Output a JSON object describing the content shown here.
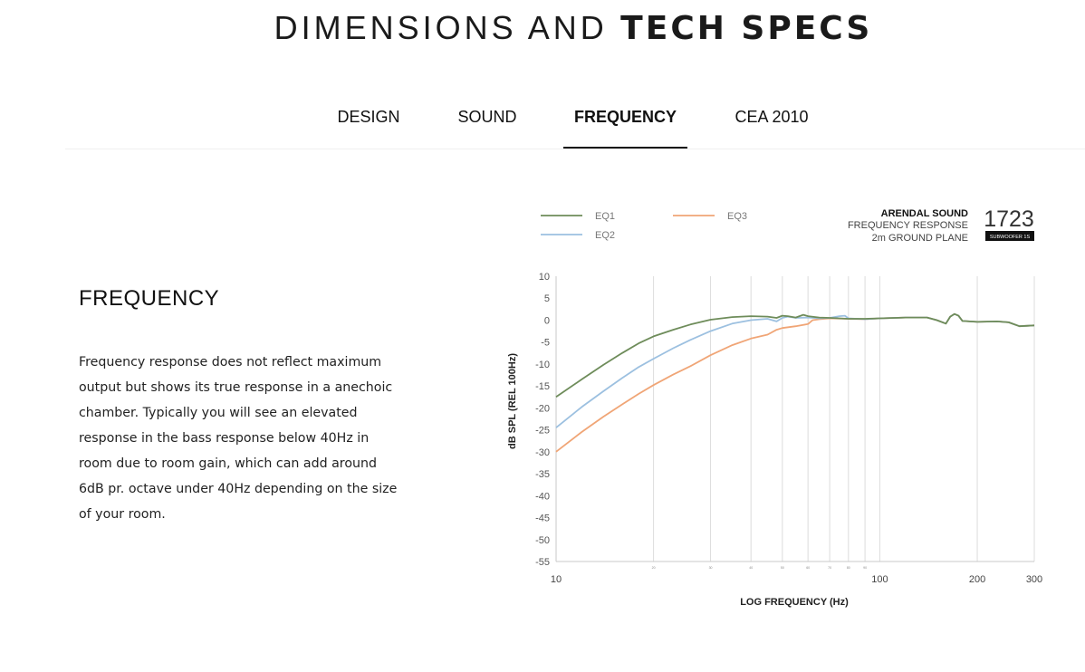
{
  "heading": {
    "light": "DIMENSIONS AND",
    "bold": "TECH SPECS"
  },
  "tabs": [
    {
      "label": "DESIGN",
      "active": false
    },
    {
      "label": "SOUND",
      "active": false
    },
    {
      "label": "FREQUENCY",
      "active": true
    },
    {
      "label": "CEA 2010",
      "active": false
    }
  ],
  "section": {
    "title": "FREQUENCY",
    "body": "Frequency response does not reflect maximum output but shows its true response in a anechoic chamber. Typically you will see an elevated response in the bass response below 40Hz in room due to room gain, which can add around 6dB pr. octave under 40Hz depending on the size of your room."
  },
  "chart_data": {
    "type": "line",
    "title": "ARENDAL SOUND",
    "subtitle_lines": [
      "FREQUENCY RESPONSE",
      "2m GROUND PLANE"
    ],
    "logo": {
      "text": "1723",
      "badge": "SUBWOOFER 1S"
    },
    "xlabel": "LOG FREQUENCY (Hz)",
    "ylabel": "dB SPL (REL 100Hz)",
    "xscale": "log",
    "xlim": [
      10,
      300
    ],
    "ylim": [
      -55,
      10
    ],
    "x_ticks": [
      10,
      100,
      200,
      300
    ],
    "x_minor_ticks": [
      20,
      30,
      40,
      50,
      60,
      70,
      80,
      90
    ],
    "y_ticks": [
      10,
      5,
      0,
      -5,
      -10,
      -15,
      -20,
      -25,
      -30,
      -35,
      -40,
      -45,
      -50,
      -55
    ],
    "grid": "vertical",
    "legend_position": "top-left",
    "series": [
      {
        "name": "EQ1",
        "color": "#6e8c5a",
        "x": [
          10,
          12,
          14,
          16,
          18,
          20,
          23,
          26,
          30,
          35,
          40,
          45,
          48,
          50,
          52,
          55,
          58,
          60,
          65,
          70,
          80,
          90,
          100,
          120,
          140,
          150,
          160,
          165,
          170,
          175,
          180,
          200,
          230,
          250,
          270,
          300
        ],
        "y": [
          -17.5,
          -13.5,
          -10.2,
          -7.5,
          -5.3,
          -3.7,
          -2.2,
          -1.0,
          0.1,
          0.7,
          0.9,
          0.8,
          0.5,
          1.0,
          0.9,
          0.6,
          1.2,
          0.9,
          0.6,
          0.5,
          0.3,
          0.3,
          0.4,
          0.6,
          0.6,
          0.0,
          -0.8,
          0.8,
          1.4,
          1.0,
          -0.2,
          -0.4,
          -0.3,
          -0.5,
          -1.4,
          -1.2
        ]
      },
      {
        "name": "EQ2",
        "color": "#9cc0e0",
        "x": [
          10,
          12,
          14,
          16,
          18,
          20,
          23,
          26,
          30,
          35,
          40,
          45,
          48,
          50,
          52,
          55,
          60,
          65,
          70,
          75,
          78,
          80,
          90,
          100,
          120,
          140,
          150,
          160,
          165,
          170,
          175,
          180,
          200,
          230,
          250,
          270,
          300
        ],
        "y": [
          -24.5,
          -19.8,
          -16.2,
          -13.2,
          -10.7,
          -8.8,
          -6.4,
          -4.5,
          -2.5,
          -0.8,
          0.0,
          0.3,
          -0.3,
          0.5,
          0.8,
          0.5,
          0.6,
          0.4,
          0.5,
          0.9,
          1.0,
          0.4,
          0.2,
          0.4,
          0.6,
          0.6,
          0.0,
          -0.8,
          0.8,
          1.4,
          1.0,
          -0.2,
          -0.4,
          -0.3,
          -0.5,
          -1.4,
          -1.2
        ]
      },
      {
        "name": "EQ3",
        "color": "#f0a576",
        "x": [
          10,
          12,
          14,
          16,
          18,
          20,
          23,
          26,
          30,
          35,
          40,
          45,
          48,
          50,
          55,
          60,
          62,
          65,
          70,
          80,
          90,
          100,
          120,
          140,
          150,
          160,
          165,
          170,
          175,
          180,
          200,
          230,
          250,
          270,
          300
        ],
        "y": [
          -30.0,
          -25.5,
          -22.0,
          -19.2,
          -16.8,
          -14.8,
          -12.4,
          -10.5,
          -8.0,
          -5.7,
          -4.2,
          -3.3,
          -2.2,
          -1.8,
          -1.4,
          -0.9,
          0.0,
          0.2,
          0.4,
          0.3,
          0.2,
          0.4,
          0.6,
          0.6,
          0.0,
          -0.8,
          0.8,
          1.4,
          1.0,
          -0.2,
          -0.4,
          -0.3,
          -0.5,
          -1.4,
          -1.2
        ]
      }
    ]
  }
}
